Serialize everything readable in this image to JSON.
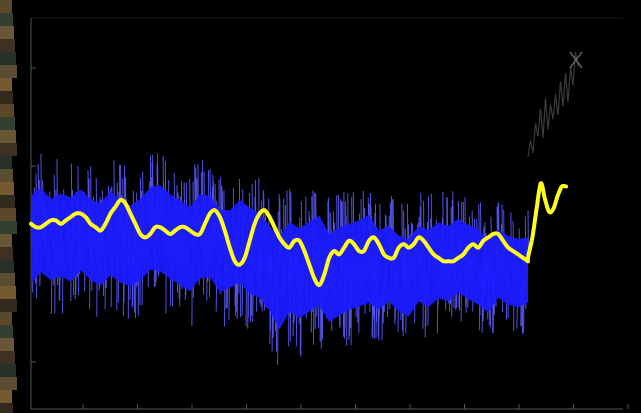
{
  "colors": {
    "background": "#000000",
    "noise": "#1a1aff",
    "noise_edge": "#5a5aff",
    "smooth": "#ffff19",
    "instrumental": "#3a3a3a",
    "axis": "#555555",
    "left_strip": "#5a4a2a"
  },
  "chart_data": {
    "type": "line",
    "title": "",
    "xlabel": "",
    "ylabel": "",
    "grid": false,
    "legend": "none",
    "x_ticks_count": 11,
    "y_ticks_count": 4,
    "xlim": [
      0,
      1
    ],
    "ylim": [
      0,
      1
    ],
    "series": [
      {
        "id": "noisy_proxy_band",
        "x": [
          0.0,
          0.02,
          0.04,
          0.06,
          0.08,
          0.1,
          0.12,
          0.14,
          0.16,
          0.18,
          0.2,
          0.22,
          0.24,
          0.26,
          0.28,
          0.3,
          0.32,
          0.34,
          0.36,
          0.38,
          0.4,
          0.42,
          0.44,
          0.46,
          0.48,
          0.5,
          0.52,
          0.54,
          0.56,
          0.58,
          0.6,
          0.62,
          0.64,
          0.66,
          0.68,
          0.7,
          0.72,
          0.74,
          0.76,
          0.78,
          0.8,
          0.82,
          0.84,
          0.86,
          0.88,
          0.9,
          0.92,
          0.94,
          0.96,
          0.98,
          1.0
        ],
        "upper": [
          0.72,
          0.74,
          0.7,
          0.72,
          0.71,
          0.73,
          0.7,
          0.69,
          0.73,
          0.7,
          0.68,
          0.7,
          0.74,
          0.75,
          0.72,
          0.7,
          0.68,
          0.72,
          0.71,
          0.67,
          0.66,
          0.7,
          0.68,
          0.66,
          0.62,
          0.6,
          0.64,
          0.62,
          0.64,
          0.66,
          0.6,
          0.62,
          0.63,
          0.64,
          0.66,
          0.6,
          0.61,
          0.58,
          0.57,
          0.61,
          0.6,
          0.62,
          0.61,
          0.63,
          0.61,
          0.6,
          0.56,
          0.59,
          0.57,
          0.56,
          0.56
        ],
        "lower": [
          0.22,
          0.26,
          0.24,
          0.25,
          0.23,
          0.27,
          0.24,
          0.22,
          0.25,
          0.23,
          0.22,
          0.24,
          0.27,
          0.26,
          0.24,
          0.22,
          0.2,
          0.24,
          0.25,
          0.2,
          0.22,
          0.23,
          0.19,
          0.18,
          0.14,
          0.07,
          0.13,
          0.11,
          0.13,
          0.15,
          0.1,
          0.12,
          0.14,
          0.15,
          0.16,
          0.15,
          0.18,
          0.15,
          0.13,
          0.18,
          0.16,
          0.19,
          0.18,
          0.21,
          0.19,
          0.17,
          0.15,
          0.2,
          0.18,
          0.17,
          0.19
        ]
      },
      {
        "id": "smoothed_reconstruction",
        "x": [
          0.0,
          0.01,
          0.02,
          0.03,
          0.04,
          0.05,
          0.06,
          0.07,
          0.08,
          0.09,
          0.1,
          0.11,
          0.12,
          0.13,
          0.14,
          0.15,
          0.16,
          0.17,
          0.18,
          0.19,
          0.2,
          0.21,
          0.22,
          0.23,
          0.24,
          0.25,
          0.26,
          0.27,
          0.28,
          0.29,
          0.3,
          0.31,
          0.32,
          0.33,
          0.34,
          0.35,
          0.36,
          0.37,
          0.38,
          0.39,
          0.4,
          0.41,
          0.42,
          0.43,
          0.44,
          0.45,
          0.46,
          0.47,
          0.48,
          0.49,
          0.5,
          0.51,
          0.52,
          0.53,
          0.54,
          0.55,
          0.56,
          0.57,
          0.58,
          0.59,
          0.6,
          0.61,
          0.62,
          0.63,
          0.64,
          0.65,
          0.66,
          0.67,
          0.68,
          0.69,
          0.7,
          0.71,
          0.72,
          0.73,
          0.74,
          0.75,
          0.76,
          0.77,
          0.78,
          0.79,
          0.8,
          0.81,
          0.82,
          0.83,
          0.84,
          0.85,
          0.86,
          0.87,
          0.88,
          0.89,
          0.9,
          0.91,
          0.92,
          0.93,
          0.94,
          0.95,
          0.96,
          0.97,
          0.98,
          0.99,
          1.0
        ],
        "values": [
          0.47,
          0.46,
          0.46,
          0.47,
          0.48,
          0.48,
          0.47,
          0.48,
          0.49,
          0.5,
          0.5,
          0.49,
          0.47,
          0.46,
          0.45,
          0.47,
          0.5,
          0.52,
          0.54,
          0.53,
          0.5,
          0.47,
          0.44,
          0.43,
          0.44,
          0.46,
          0.46,
          0.45,
          0.44,
          0.45,
          0.46,
          0.46,
          0.45,
          0.44,
          0.44,
          0.47,
          0.5,
          0.51,
          0.49,
          0.45,
          0.4,
          0.36,
          0.35,
          0.37,
          0.42,
          0.47,
          0.5,
          0.51,
          0.49,
          0.46,
          0.43,
          0.41,
          0.4,
          0.42,
          0.42,
          0.39,
          0.35,
          0.31,
          0.29,
          0.32,
          0.37,
          0.39,
          0.38,
          0.4,
          0.42,
          0.41,
          0.39,
          0.39,
          0.42,
          0.43,
          0.41,
          0.38,
          0.37,
          0.37,
          0.4,
          0.41,
          0.4,
          0.41,
          0.43,
          0.42,
          0.4,
          0.38,
          0.37,
          0.36,
          0.36,
          0.36,
          0.37,
          0.38,
          0.4,
          0.41,
          0.4,
          0.42,
          0.43,
          0.44,
          0.44,
          0.42,
          0.4,
          0.39,
          0.38,
          0.37,
          0.36
        ]
      },
      {
        "id": "smoothed_uptick",
        "x": [
          0.0,
          0.1,
          0.2,
          0.3,
          0.4,
          0.5,
          0.6,
          0.7,
          0.8,
          0.9,
          1.0
        ],
        "values": [
          0.36,
          0.4,
          0.46,
          0.55,
          0.63,
          0.58,
          0.54,
          0.55,
          0.59,
          0.62,
          0.62
        ]
      },
      {
        "id": "instrumental_spike",
        "x": [
          0.0,
          0.05,
          0.1,
          0.15,
          0.2,
          0.25,
          0.3,
          0.35,
          0.4,
          0.45,
          0.5,
          0.55,
          0.6,
          0.65,
          0.7,
          0.75,
          0.8,
          0.85,
          0.9,
          0.95,
          1.0
        ],
        "values": [
          0.5,
          0.58,
          0.52,
          0.66,
          0.6,
          0.73,
          0.59,
          0.78,
          0.63,
          0.75,
          0.68,
          0.8,
          0.7,
          0.86,
          0.74,
          0.9,
          0.76,
          0.93,
          0.84,
          1.0,
          0.93
        ]
      }
    ]
  }
}
